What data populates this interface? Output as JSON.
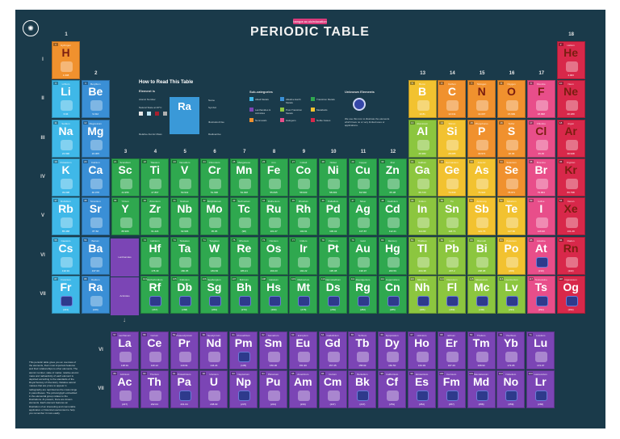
{
  "poster": {
    "tag": "bangor.ac.uk/education",
    "title": "PERIODIC TABLE",
    "logo_icon": "university-seal-icon"
  },
  "groups": [
    "1",
    "2",
    "3",
    "4",
    "5",
    "6",
    "7",
    "8",
    "9",
    "10",
    "11",
    "12",
    "13",
    "14",
    "15",
    "16",
    "17",
    "18"
  ],
  "periods": [
    "I",
    "II",
    "III",
    "IV",
    "V",
    "VI",
    "VII"
  ],
  "how_to": {
    "title": "How to Read This Table",
    "subtitle": "Element is",
    "demo_symbol": "Ra",
    "demo_name": "Radium",
    "left_labels": [
      "Atomic Number",
      "Natural State at 20°C",
      "Relative Atomic Mass"
    ],
    "state_labels": [
      "Solid",
      "Liquid",
      "Gas",
      "Unknown"
    ],
    "right_labels": [
      "Name",
      "Symbol",
      "Illustration/Use",
      "Radioactive"
    ]
  },
  "categories": {
    "title": "Sub-categories",
    "items": [
      {
        "label": "Alkali Metals",
        "color": "#3fb8e8"
      },
      {
        "label": "Alkaline Earth Metals",
        "color": "#3a8fd6"
      },
      {
        "label": "Transition Metals",
        "color": "#2fa84f"
      },
      {
        "label": "Lanthanides & Actinides",
        "color": "#7b45b5"
      },
      {
        "label": "Post-Transition Metals",
        "color": "#8cc63f"
      },
      {
        "label": "Metalloids",
        "color": "#f2c230"
      },
      {
        "label": "Nonmetals",
        "color": "#f0912e"
      },
      {
        "label": "Halogens",
        "color": "#e84e8a"
      },
      {
        "label": "Noble Gases",
        "color": "#d8284a"
      }
    ]
  },
  "unknown": {
    "title": "Unknown Elements",
    "text": "We use this icon to illustrate the elements which have no or very limited uses or applications."
  },
  "lanthanides_label": "Lanthanides",
  "actinides_label": "Actinides",
  "lanthanides_range": "57-71",
  "actinides_range": "89-103",
  "description": "This periodic table gives you an overview of the elements, their most important features and their relationships to other elements. The atomic number, state of matter, relative atomic mass and radioactivity of each element is depicted according to the standards of the Royal Society of Chemistry. Relative atomic masses that are prone to appear in radiography are reprinted as the mass range in parentheses. The picture/glyph embedded in the elemental group relates to the illustrations. At present, there are known elements. Each element features an illustration of an interesting and memorable application or historical use/context to help you remember it more easily.",
  "elements": [
    {
      "n": 1,
      "s": "H",
      "name": "Hydrogen",
      "mass": "1.008",
      "g": 1,
      "p": 1,
      "c": "nonmetal",
      "dark": true
    },
    {
      "n": 2,
      "s": "He",
      "name": "Helium",
      "mass": "4.003",
      "g": 18,
      "p": 1,
      "c": "noble",
      "dark": true
    },
    {
      "n": 3,
      "s": "Li",
      "name": "Lithium",
      "mass": "6.94",
      "g": 1,
      "p": 2,
      "c": "alkali"
    },
    {
      "n": 4,
      "s": "Be",
      "name": "Beryllium",
      "mass": "9.012",
      "g": 2,
      "p": 2,
      "c": "alkaline"
    },
    {
      "n": 5,
      "s": "B",
      "name": "Boron",
      "mass": "10.81",
      "g": 13,
      "p": 2,
      "c": "metalloid"
    },
    {
      "n": 6,
      "s": "C",
      "name": "Carbon",
      "mass": "12.011",
      "g": 14,
      "p": 2,
      "c": "nonmetal"
    },
    {
      "n": 7,
      "s": "N",
      "name": "Nitrogen",
      "mass": "14.007",
      "g": 15,
      "p": 2,
      "c": "nonmetal",
      "dark": true
    },
    {
      "n": 8,
      "s": "O",
      "name": "Oxygen",
      "mass": "15.999",
      "g": 16,
      "p": 2,
      "c": "nonmetal",
      "dark": true
    },
    {
      "n": 9,
      "s": "F",
      "name": "Fluorine",
      "mass": "18.998",
      "g": 17,
      "p": 2,
      "c": "halogen",
      "dark": true
    },
    {
      "n": 10,
      "s": "Ne",
      "name": "Neon",
      "mass": "20.180",
      "g": 18,
      "p": 2,
      "c": "noble",
      "dark": true
    },
    {
      "n": 11,
      "s": "Na",
      "name": "Sodium",
      "mass": "22.990",
      "g": 1,
      "p": 3,
      "c": "alkali"
    },
    {
      "n": 12,
      "s": "Mg",
      "name": "Magnesium",
      "mass": "24.305",
      "g": 2,
      "p": 3,
      "c": "alkaline"
    },
    {
      "n": 13,
      "s": "Al",
      "name": "Aluminium",
      "mass": "26.982",
      "g": 13,
      "p": 3,
      "c": "post"
    },
    {
      "n": 14,
      "s": "Si",
      "name": "Silicon",
      "mass": "28.085",
      "g": 14,
      "p": 3,
      "c": "metalloid"
    },
    {
      "n": 15,
      "s": "P",
      "name": "Phosphorus",
      "mass": "30.974",
      "g": 15,
      "p": 3,
      "c": "nonmetal"
    },
    {
      "n": 16,
      "s": "S",
      "name": "Sulfur",
      "mass": "32.06",
      "g": 16,
      "p": 3,
      "c": "nonmetal"
    },
    {
      "n": 17,
      "s": "Cl",
      "name": "Chlorine",
      "mass": "35.45",
      "g": 17,
      "p": 3,
      "c": "halogen",
      "dark": true
    },
    {
      "n": 18,
      "s": "Ar",
      "name": "Argon",
      "mass": "39.948",
      "g": 18,
      "p": 3,
      "c": "noble",
      "dark": true
    },
    {
      "n": 19,
      "s": "K",
      "name": "Potassium",
      "mass": "39.098",
      "g": 1,
      "p": 4,
      "c": "alkali"
    },
    {
      "n": 20,
      "s": "Ca",
      "name": "Calcium",
      "mass": "40.078",
      "g": 2,
      "p": 4,
      "c": "alkaline"
    },
    {
      "n": 21,
      "s": "Sc",
      "name": "Scandium",
      "mass": "44.956",
      "g": 3,
      "p": 4,
      "c": "transition"
    },
    {
      "n": 22,
      "s": "Ti",
      "name": "Titanium",
      "mass": "47.867",
      "g": 4,
      "p": 4,
      "c": "transition"
    },
    {
      "n": 23,
      "s": "V",
      "name": "Vanadium",
      "mass": "50.942",
      "g": 5,
      "p": 4,
      "c": "transition"
    },
    {
      "n": 24,
      "s": "Cr",
      "name": "Chromium",
      "mass": "51.996",
      "g": 6,
      "p": 4,
      "c": "transition"
    },
    {
      "n": 25,
      "s": "Mn",
      "name": "Manganese",
      "mass": "54.938",
      "g": 7,
      "p": 4,
      "c": "transition"
    },
    {
      "n": 26,
      "s": "Fe",
      "name": "Iron",
      "mass": "55.845",
      "g": 8,
      "p": 4,
      "c": "transition"
    },
    {
      "n": 27,
      "s": "Co",
      "name": "Cobalt",
      "mass": "58.933",
      "g": 9,
      "p": 4,
      "c": "transition"
    },
    {
      "n": 28,
      "s": "Ni",
      "name": "Nickel",
      "mass": "58.693",
      "g": 10,
      "p": 4,
      "c": "transition"
    },
    {
      "n": 29,
      "s": "Cu",
      "name": "Copper",
      "mass": "63.546",
      "g": 11,
      "p": 4,
      "c": "transition"
    },
    {
      "n": 30,
      "s": "Zn",
      "name": "Zinc",
      "mass": "65.38",
      "g": 12,
      "p": 4,
      "c": "transition"
    },
    {
      "n": 31,
      "s": "Ga",
      "name": "Gallium",
      "mass": "69.723",
      "g": 13,
      "p": 4,
      "c": "post"
    },
    {
      "n": 32,
      "s": "Ge",
      "name": "Germanium",
      "mass": "72.630",
      "g": 14,
      "p": 4,
      "c": "metalloid"
    },
    {
      "n": 33,
      "s": "As",
      "name": "Arsenic",
      "mass": "74.922",
      "g": 15,
      "p": 4,
      "c": "metalloid"
    },
    {
      "n": 34,
      "s": "Se",
      "name": "Selenium",
      "mass": "78.971",
      "g": 16,
      "p": 4,
      "c": "nonmetal"
    },
    {
      "n": 35,
      "s": "Br",
      "name": "Bromine",
      "mass": "79.904",
      "g": 17,
      "p": 4,
      "c": "halogen"
    },
    {
      "n": 36,
      "s": "Kr",
      "name": "Krypton",
      "mass": "83.798",
      "g": 18,
      "p": 4,
      "c": "noble",
      "dark": true
    },
    {
      "n": 37,
      "s": "Rb",
      "name": "Rubidium",
      "mass": "85.468",
      "g": 1,
      "p": 5,
      "c": "alkali"
    },
    {
      "n": 38,
      "s": "Sr",
      "name": "Strontium",
      "mass": "87.62",
      "g": 2,
      "p": 5,
      "c": "alkaline"
    },
    {
      "n": 39,
      "s": "Y",
      "name": "Yttrium",
      "mass": "88.906",
      "g": 3,
      "p": 5,
      "c": "transition"
    },
    {
      "n": 40,
      "s": "Zr",
      "name": "Zirconium",
      "mass": "91.224",
      "g": 4,
      "p": 5,
      "c": "transition"
    },
    {
      "n": 41,
      "s": "Nb",
      "name": "Niobium",
      "mass": "92.906",
      "g": 5,
      "p": 5,
      "c": "transition"
    },
    {
      "n": 42,
      "s": "Mo",
      "name": "Molybdenum",
      "mass": "95.95",
      "g": 6,
      "p": 5,
      "c": "transition"
    },
    {
      "n": 43,
      "s": "Tc",
      "name": "Technetium",
      "mass": "(98)",
      "g": 7,
      "p": 5,
      "c": "transition"
    },
    {
      "n": 44,
      "s": "Ru",
      "name": "Ruthenium",
      "mass": "101.07",
      "g": 8,
      "p": 5,
      "c": "transition"
    },
    {
      "n": 45,
      "s": "Rh",
      "name": "Rhodium",
      "mass": "102.91",
      "g": 9,
      "p": 5,
      "c": "transition"
    },
    {
      "n": 46,
      "s": "Pd",
      "name": "Palladium",
      "mass": "106.42",
      "g": 10,
      "p": 5,
      "c": "transition"
    },
    {
      "n": 47,
      "s": "Ag",
      "name": "Silver",
      "mass": "107.87",
      "g": 11,
      "p": 5,
      "c": "transition"
    },
    {
      "n": 48,
      "s": "Cd",
      "name": "Cadmium",
      "mass": "112.41",
      "g": 12,
      "p": 5,
      "c": "transition"
    },
    {
      "n": 49,
      "s": "In",
      "name": "Indium",
      "mass": "114.82",
      "g": 13,
      "p": 5,
      "c": "post"
    },
    {
      "n": 50,
      "s": "Sn",
      "name": "Tin",
      "mass": "118.71",
      "g": 14,
      "p": 5,
      "c": "post"
    },
    {
      "n": 51,
      "s": "Sb",
      "name": "Antimony",
      "mass": "121.76",
      "g": 15,
      "p": 5,
      "c": "metalloid"
    },
    {
      "n": 52,
      "s": "Te",
      "name": "Tellurium",
      "mass": "127.60",
      "g": 16,
      "p": 5,
      "c": "metalloid"
    },
    {
      "n": 53,
      "s": "I",
      "name": "Iodine",
      "mass": "126.90",
      "g": 17,
      "p": 5,
      "c": "halogen"
    },
    {
      "n": 54,
      "s": "Xe",
      "name": "Xenon",
      "mass": "131.29",
      "g": 18,
      "p": 5,
      "c": "noble",
      "dark": true
    },
    {
      "n": 55,
      "s": "Cs",
      "name": "Caesium",
      "mass": "132.91",
      "g": 1,
      "p": 6,
      "c": "alkali"
    },
    {
      "n": 56,
      "s": "Ba",
      "name": "Barium",
      "mass": "137.33",
      "g": 2,
      "p": 6,
      "c": "alkaline"
    },
    {
      "n": 72,
      "s": "Hf",
      "name": "Hafnium",
      "mass": "178.49",
      "g": 4,
      "p": 6,
      "c": "transition"
    },
    {
      "n": 73,
      "s": "Ta",
      "name": "Tantalum",
      "mass": "180.95",
      "g": 5,
      "p": 6,
      "c": "transition"
    },
    {
      "n": 74,
      "s": "W",
      "name": "Tungsten",
      "mass": "183.84",
      "g": 6,
      "p": 6,
      "c": "transition"
    },
    {
      "n": 75,
      "s": "Re",
      "name": "Rhenium",
      "mass": "186.21",
      "g": 7,
      "p": 6,
      "c": "transition"
    },
    {
      "n": 76,
      "s": "Os",
      "name": "Osmium",
      "mass": "190.23",
      "g": 8,
      "p": 6,
      "c": "transition"
    },
    {
      "n": 77,
      "s": "Ir",
      "name": "Iridium",
      "mass": "192.22",
      "g": 9,
      "p": 6,
      "c": "transition"
    },
    {
      "n": 78,
      "s": "Pt",
      "name": "Platinum",
      "mass": "195.08",
      "g": 10,
      "p": 6,
      "c": "transition"
    },
    {
      "n": 79,
      "s": "Au",
      "name": "Gold",
      "mass": "196.97",
      "g": 11,
      "p": 6,
      "c": "transition"
    },
    {
      "n": 80,
      "s": "Hg",
      "name": "Mercury",
      "mass": "200.59",
      "g": 12,
      "p": 6,
      "c": "transition"
    },
    {
      "n": 81,
      "s": "Tl",
      "name": "Thallium",
      "mass": "204.38",
      "g": 13,
      "p": 6,
      "c": "post"
    },
    {
      "n": 82,
      "s": "Pb",
      "name": "Lead",
      "mass": "207.2",
      "g": 14,
      "p": 6,
      "c": "post"
    },
    {
      "n": 83,
      "s": "Bi",
      "name": "Bismuth",
      "mass": "208.98",
      "g": 15,
      "p": 6,
      "c": "post"
    },
    {
      "n": 84,
      "s": "Po",
      "name": "Polonium",
      "mass": "(209)",
      "g": 16,
      "p": 6,
      "c": "metalloid"
    },
    {
      "n": 85,
      "s": "At",
      "name": "Astatine",
      "mass": "(210)",
      "g": 17,
      "p": 6,
      "c": "halogen",
      "unk": true
    },
    {
      "n": 86,
      "s": "Rn",
      "name": "Radon",
      "mass": "(222)",
      "g": 18,
      "p": 6,
      "c": "noble",
      "dark": true
    },
    {
      "n": 87,
      "s": "Fr",
      "name": "Francium",
      "mass": "(223)",
      "g": 1,
      "p": 7,
      "c": "alkali",
      "unk": true
    },
    {
      "n": 88,
      "s": "Ra",
      "name": "Radium",
      "mass": "(226)",
      "g": 2,
      "p": 7,
      "c": "alkaline"
    },
    {
      "n": 104,
      "s": "Rf",
      "name": "Rutherfordium",
      "mass": "(267)",
      "g": 4,
      "p": 7,
      "c": "transition",
      "unk": true
    },
    {
      "n": 105,
      "s": "Db",
      "name": "Dubnium",
      "mass": "(268)",
      "g": 5,
      "p": 7,
      "c": "transition",
      "unk": true
    },
    {
      "n": 106,
      "s": "Sg",
      "name": "Seaborgium",
      "mass": "(269)",
      "g": 6,
      "p": 7,
      "c": "transition",
      "unk": true
    },
    {
      "n": 107,
      "s": "Bh",
      "name": "Bohrium",
      "mass": "(270)",
      "g": 7,
      "p": 7,
      "c": "transition",
      "unk": true
    },
    {
      "n": 108,
      "s": "Hs",
      "name": "Hassium",
      "mass": "(269)",
      "g": 8,
      "p": 7,
      "c": "transition",
      "unk": true
    },
    {
      "n": 109,
      "s": "Mt",
      "name": "Meitnerium",
      "mass": "(278)",
      "g": 9,
      "p": 7,
      "c": "transition",
      "unk": true
    },
    {
      "n": 110,
      "s": "Ds",
      "name": "Darmstadtium",
      "mass": "(281)",
      "g": 10,
      "p": 7,
      "c": "transition",
      "unk": true
    },
    {
      "n": 111,
      "s": "Rg",
      "name": "Roentgenium",
      "mass": "(282)",
      "g": 11,
      "p": 7,
      "c": "transition",
      "unk": true
    },
    {
      "n": 112,
      "s": "Cn",
      "name": "Copernicium",
      "mass": "(285)",
      "g": 12,
      "p": 7,
      "c": "transition",
      "unk": true
    },
    {
      "n": 113,
      "s": "Nh",
      "name": "Nihonium",
      "mass": "(286)",
      "g": 13,
      "p": 7,
      "c": "post",
      "unk": true
    },
    {
      "n": 114,
      "s": "Fl",
      "name": "Flerovium",
      "mass": "(289)",
      "g": 14,
      "p": 7,
      "c": "post",
      "unk": true
    },
    {
      "n": 115,
      "s": "Mc",
      "name": "Moscovium",
      "mass": "(290)",
      "g": 15,
      "p": 7,
      "c": "post",
      "unk": true
    },
    {
      "n": 116,
      "s": "Lv",
      "name": "Livermorium",
      "mass": "(293)",
      "g": 16,
      "p": 7,
      "c": "post",
      "unk": true
    },
    {
      "n": 117,
      "s": "Ts",
      "name": "Tennessine",
      "mass": "(294)",
      "g": 17,
      "p": 7,
      "c": "halogen",
      "unk": true
    },
    {
      "n": 118,
      "s": "Og",
      "name": "Oganesson",
      "mass": "(294)",
      "g": 18,
      "p": 7,
      "c": "noble",
      "unk": true
    }
  ],
  "f_block": [
    [
      {
        "n": 57,
        "s": "La",
        "name": "Lanthanum",
        "mass": "138.91"
      },
      {
        "n": 58,
        "s": "Ce",
        "name": "Cerium",
        "mass": "140.12"
      },
      {
        "n": 59,
        "s": "Pr",
        "name": "Praseodymium",
        "mass": "140.91"
      },
      {
        "n": 60,
        "s": "Nd",
        "name": "Neodymium",
        "mass": "144.24"
      },
      {
        "n": 61,
        "s": "Pm",
        "name": "Promethium",
        "mass": "(145)",
        "unk": true
      },
      {
        "n": 62,
        "s": "Sm",
        "name": "Samarium",
        "mass": "150.36"
      },
      {
        "n": 63,
        "s": "Eu",
        "name": "Europium",
        "mass": "151.96"
      },
      {
        "n": 64,
        "s": "Gd",
        "name": "Gadolinium",
        "mass": "157.25"
      },
      {
        "n": 65,
        "s": "Tb",
        "name": "Terbium",
        "mass": "158.93"
      },
      {
        "n": 66,
        "s": "Dy",
        "name": "Dysprosium",
        "mass": "162.50"
      },
      {
        "n": 67,
        "s": "Ho",
        "name": "Holmium",
        "mass": "164.93"
      },
      {
        "n": 68,
        "s": "Er",
        "name": "Erbium",
        "mass": "167.26"
      },
      {
        "n": 69,
        "s": "Tm",
        "name": "Thulium",
        "mass": "168.93"
      },
      {
        "n": 70,
        "s": "Yb",
        "name": "Ytterbium",
        "mass": "173.05"
      },
      {
        "n": 71,
        "s": "Lu",
        "name": "Lutetium",
        "mass": "174.97"
      }
    ],
    [
      {
        "n": 89,
        "s": "Ac",
        "name": "Actinium",
        "mass": "(227)"
      },
      {
        "n": 90,
        "s": "Th",
        "name": "Thorium",
        "mass": "232.04"
      },
      {
        "n": 91,
        "s": "Pa",
        "name": "Protactinium",
        "mass": "231.04",
        "unk": true
      },
      {
        "n": 92,
        "s": "U",
        "name": "Uranium",
        "mass": "238.03"
      },
      {
        "n": 93,
        "s": "Np",
        "name": "Neptunium",
        "mass": "(237)",
        "unk": true
      },
      {
        "n": 94,
        "s": "Pu",
        "name": "Plutonium",
        "mass": "(244)"
      },
      {
        "n": 95,
        "s": "Am",
        "name": "Americium",
        "mass": "(243)"
      },
      {
        "n": 96,
        "s": "Cm",
        "name": "Curium",
        "mass": "(247)"
      },
      {
        "n": 97,
        "s": "Bk",
        "name": "Berkelium",
        "mass": "(247)",
        "unk": true
      },
      {
        "n": 98,
        "s": "Cf",
        "name": "Californium",
        "mass": "(251)"
      },
      {
        "n": 99,
        "s": "Es",
        "name": "Einsteinium",
        "mass": "(252)",
        "unk": true
      },
      {
        "n": 100,
        "s": "Fm",
        "name": "Fermium",
        "mass": "(257)",
        "unk": true
      },
      {
        "n": 101,
        "s": "Md",
        "name": "Mendelevium",
        "mass": "(258)",
        "unk": true
      },
      {
        "n": 102,
        "s": "No",
        "name": "Nobelium",
        "mass": "(259)",
        "unk": true
      },
      {
        "n": 103,
        "s": "Lr",
        "name": "Lawrencium",
        "mass": "(266)",
        "unk": true
      }
    ]
  ],
  "f_periods": [
    "VI",
    "VII"
  ],
  "colors": {
    "alkali": "#3fb8e8",
    "alkaline": "#3a8fd6",
    "transition": "#2fa84f",
    "post": "#8cc63f",
    "metalloid": "#f2c230",
    "nonmetal": "#f0912e",
    "halogen": "#e84e8a",
    "noble": "#d8284a",
    "fblock": "#7b45b5",
    "background": "#1a3a4a"
  }
}
